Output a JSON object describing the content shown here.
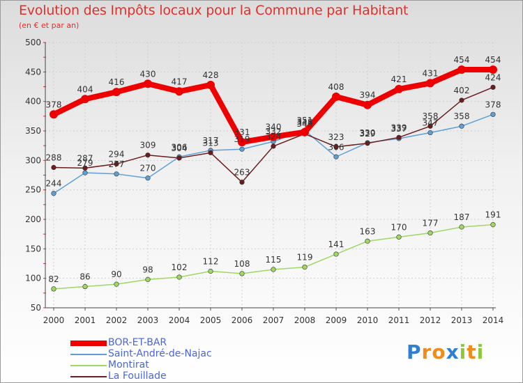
{
  "title": "Evolution des Impôts locaux pour la Commune par Habitant",
  "subtitle": "(en € et par an)",
  "chart_data": {
    "type": "line",
    "title": "Evolution des Impôts locaux pour la Commune par Habitant",
    "subtitle": "(en € et par an)",
    "xlabel": "",
    "ylabel": "",
    "ylim": [
      50,
      500
    ],
    "yticks": [
      50,
      100,
      150,
      200,
      250,
      300,
      350,
      400,
      450,
      500
    ],
    "grid": true,
    "legend_position": "bottom-left",
    "categories": [
      "2000",
      "2001",
      "2002",
      "2003",
      "2004",
      "2005",
      "2006",
      "2007",
      "2008",
      "2009",
      "2010",
      "2011",
      "2012",
      "2013",
      "2014"
    ],
    "series": [
      {
        "name": "BOR-ET-BAR",
        "color": "#ee0000",
        "values": [
          378,
          404,
          416,
          430,
          417,
          428,
          331,
          340,
          348,
          408,
          394,
          421,
          431,
          454,
          454
        ]
      },
      {
        "name": "Saint-André-de-Najac",
        "color": "#5f9fd6",
        "values": [
          244,
          279,
          277,
          270,
          306,
          317,
          319,
          332,
          351,
          306,
          330,
          337,
          347,
          358,
          378
        ]
      },
      {
        "name": "Montirat",
        "color": "#9ed862",
        "values": [
          82,
          86,
          90,
          98,
          102,
          112,
          108,
          115,
          119,
          141,
          163,
          170,
          177,
          187,
          191
        ]
      },
      {
        "name": "La Fouillade",
        "color": "#6b1c1c",
        "values": [
          288,
          287,
          294,
          309,
          304,
          313,
          263,
          324,
          345,
          323,
          329,
          339,
          358,
          402,
          424
        ]
      }
    ]
  },
  "logo": {
    "letters": [
      "P",
      "r",
      "o",
      "x",
      "i",
      "t",
      "i"
    ],
    "colors": [
      "#2e7fd6",
      "#f08c1a",
      "#f08c1a",
      "#2e7fd6",
      "#8cc83c",
      "#f08c1a",
      "#8cc83c"
    ]
  }
}
